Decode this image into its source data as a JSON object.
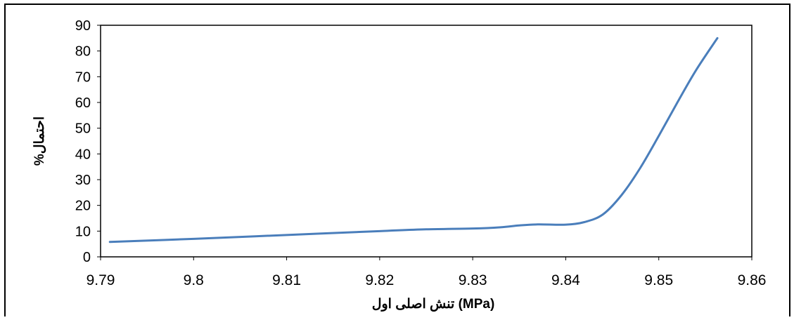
{
  "chart_data": {
    "type": "line",
    "title": "",
    "xlabel": "تنش اصلی اول  (MPa)",
    "ylabel": "%احتمال",
    "xlim": [
      9.79,
      9.86
    ],
    "ylim": [
      0,
      90
    ],
    "xticks": [
      "9.79",
      "9.8",
      "9.81",
      "9.82",
      "9.83",
      "9.84",
      "9.85",
      "9.86"
    ],
    "yticks": [
      "0",
      "10",
      "20",
      "30",
      "40",
      "50",
      "60",
      "70",
      "80",
      "90"
    ],
    "grid": false,
    "legend": "none",
    "series": [
      {
        "color": "#4a7ebb",
        "x": [
          9.791,
          9.8,
          9.81,
          9.82,
          9.825,
          9.83,
          9.833,
          9.835,
          9.837,
          9.84,
          9.842,
          9.844,
          9.846,
          9.848,
          9.85,
          9.852,
          9.854,
          9.8563
        ],
        "y": [
          5.8,
          7.0,
          8.5,
          10.0,
          10.7,
          11.0,
          11.5,
          12.2,
          12.6,
          12.5,
          13.5,
          16.5,
          24.0,
          34.5,
          47.0,
          60.0,
          72.5,
          85.0
        ]
      }
    ]
  }
}
